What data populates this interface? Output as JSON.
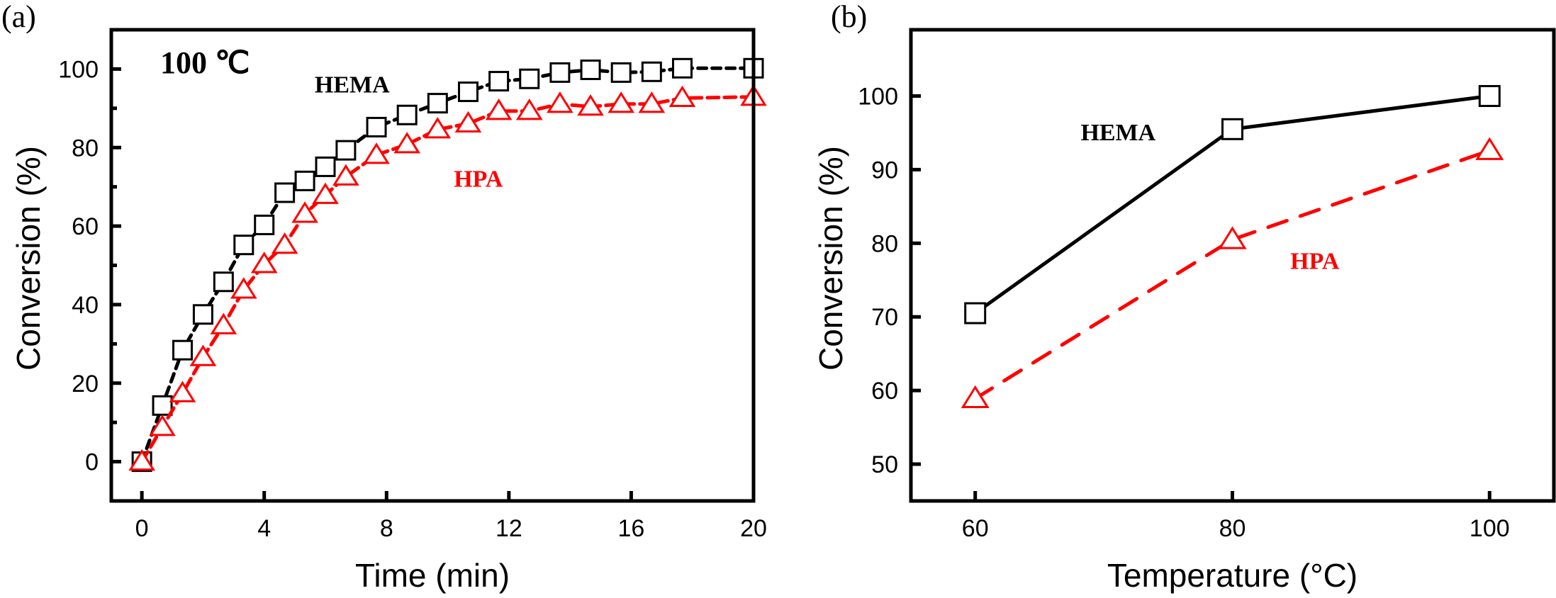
{
  "colors": {
    "hema": "#000000",
    "hpa": "#ff0000",
    "axis": "#000000"
  },
  "chart_data": [
    {
      "panel_label": "(a)",
      "type": "line",
      "title": "",
      "xlabel": "Time (min)",
      "ylabel": "Conversion (%)",
      "xlim": [
        -1,
        20
      ],
      "ylim": [
        -10,
        110
      ],
      "x_ticks": [
        0,
        4,
        8,
        12,
        16,
        20
      ],
      "x_tick_labels": [
        "0",
        "4",
        "8",
        "12",
        "16",
        "20"
      ],
      "y_ticks": [
        0,
        20,
        40,
        60,
        80,
        100
      ],
      "y_tick_labels": [
        "0",
        "20",
        "40",
        "60",
        "80",
        "100"
      ],
      "y_minor_ticks": [
        10,
        30,
        50,
        70,
        90
      ],
      "grid": false,
      "legend": "none",
      "annotations": [
        {
          "text": "100 ℃",
          "x": 0.6,
          "y": 99,
          "style": "bold-large",
          "color": "hema"
        },
        {
          "text": "HEMA",
          "x": 5.65,
          "y": 94,
          "style": "bold",
          "color": "hema"
        },
        {
          "text": "HPA",
          "x": 10.2,
          "y": 70,
          "style": "bold",
          "color": "hpa"
        }
      ],
      "x": [
        0,
        0.67,
        1.33,
        2,
        2.67,
        3.33,
        4,
        4.67,
        5.33,
        6,
        6.67,
        7.67,
        8.67,
        9.67,
        10.67,
        11.67,
        12.67,
        13.67,
        14.67,
        15.67,
        16.67,
        17.67,
        20
      ],
      "series": [
        {
          "name": "HEMA",
          "color_key": "hema",
          "marker": "square-open",
          "line": "short-dash",
          "values": [
            0,
            14.3,
            28.4,
            37.5,
            45.8,
            55.2,
            60.3,
            68.5,
            71.5,
            75.1,
            79.3,
            85.2,
            88.3,
            91.3,
            94.2,
            96.9,
            97.5,
            99.1,
            99.8,
            99.1,
            99.3,
            100.2,
            100.2
          ]
        },
        {
          "name": "HPA",
          "color_key": "hpa",
          "marker": "triangle-open",
          "line": "dash",
          "values": [
            0,
            8.8,
            17.4,
            26.6,
            34.7,
            43.8,
            50.3,
            55.2,
            63.1,
            67.9,
            72.6,
            78.1,
            80.8,
            84.6,
            86.1,
            89.3,
            89.3,
            91.1,
            90.4,
            91.1,
            91.1,
            92.6,
            92.9
          ]
        }
      ]
    },
    {
      "panel_label": "(b)",
      "type": "line",
      "title": "",
      "xlabel": "Temperature (°C)",
      "ylabel": "Conversion (%)",
      "xlim": [
        55,
        105
      ],
      "ylim": [
        45,
        109
      ],
      "x_ticks": [
        60,
        80,
        100
      ],
      "x_tick_labels": [
        "60",
        "80",
        "100"
      ],
      "y_ticks": [
        50,
        60,
        70,
        80,
        90,
        100
      ],
      "y_tick_labels": [
        "50",
        "60",
        "70",
        "80",
        "90",
        "100"
      ],
      "grid": false,
      "legend": "none",
      "annotations": [
        {
          "text": "HEMA",
          "x": 68.2,
          "y": 94,
          "style": "bold",
          "color": "hema"
        },
        {
          "text": "HPA",
          "x": 84.5,
          "y": 76.5,
          "style": "bold",
          "color": "hpa"
        }
      ],
      "x": [
        60,
        80,
        100
      ],
      "series": [
        {
          "name": "HEMA",
          "color_key": "hema",
          "marker": "square-open",
          "line": "solid",
          "values": [
            70.5,
            95.5,
            100.0
          ]
        },
        {
          "name": "HPA",
          "color_key": "hpa",
          "marker": "triangle-open",
          "line": "dash",
          "values": [
            58.9,
            80.5,
            92.6
          ]
        }
      ]
    }
  ]
}
